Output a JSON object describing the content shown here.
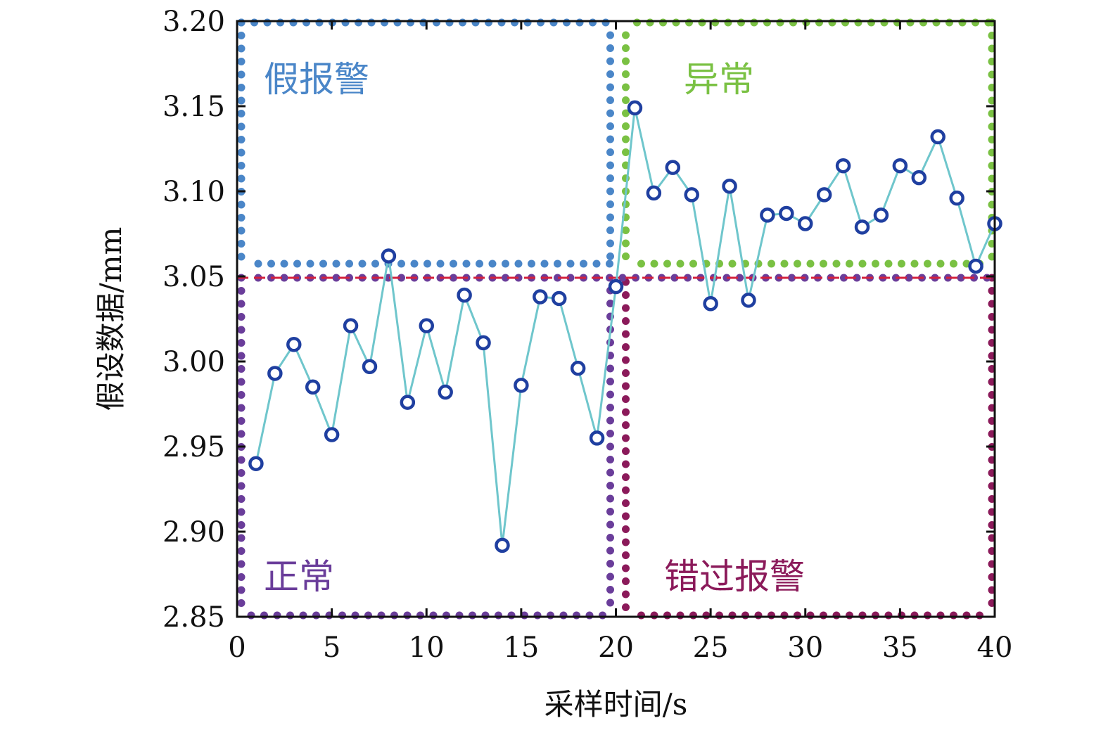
{
  "chart_data": {
    "type": "line",
    "xlabel": "采样时间/s",
    "ylabel": "假设数据/mm",
    "xlim": [
      0,
      40
    ],
    "ylim": [
      2.85,
      3.2
    ],
    "xticks": [
      "0",
      "5",
      "10",
      "15",
      "20",
      "25",
      "30",
      "35",
      "40"
    ],
    "yticks": [
      "2.85",
      "2.90",
      "2.95",
      "3.00",
      "3.05",
      "3.10",
      "3.15",
      "3.20"
    ],
    "grid": false,
    "threshold": 3.05,
    "regions": [
      {
        "label": "假报警",
        "color": "#4a86c8"
      },
      {
        "label": "异常",
        "color": "#7ac143"
      },
      {
        "label": "正常",
        "color": "#6a3d9a"
      },
      {
        "label": "错过报警",
        "color": "#8b1a5a"
      }
    ],
    "series": [
      {
        "line_color": "#6fc6cc",
        "marker_color": "#1f3fa0",
        "x": [
          1,
          2,
          3,
          4,
          5,
          6,
          7,
          8,
          9,
          10,
          11,
          12,
          13,
          14,
          15,
          16,
          17,
          18,
          19,
          20,
          21,
          22,
          23,
          24,
          25,
          26,
          27,
          28,
          29,
          30,
          31,
          32,
          33,
          34,
          35,
          36,
          37,
          38,
          39,
          40
        ],
        "y": [
          2.94,
          2.993,
          3.01,
          2.985,
          2.957,
          3.021,
          2.997,
          3.062,
          2.976,
          3.021,
          2.982,
          3.039,
          3.011,
          2.892,
          2.986,
          3.038,
          3.037,
          2.996,
          2.955,
          3.044,
          3.149,
          3.099,
          3.114,
          3.098,
          3.034,
          3.103,
          3.036,
          3.086,
          3.087,
          3.081,
          3.098,
          3.115,
          3.079,
          3.086,
          3.115,
          3.108,
          3.132,
          3.096,
          3.056,
          3.081
        ]
      }
    ]
  }
}
